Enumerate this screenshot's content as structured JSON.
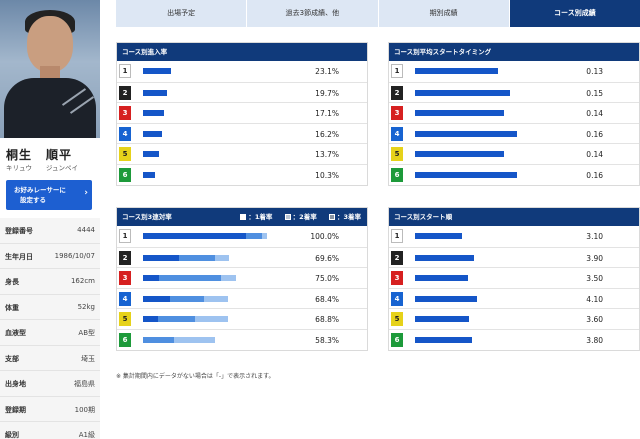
{
  "profile": {
    "surname": "桐生",
    "given": "順平",
    "surname_kana": "キリュウ",
    "given_kana": "ジュンペイ",
    "fav_button": [
      "お好みレーサーに",
      "設定する"
    ],
    "chevron": "›",
    "rows": [
      {
        "label": "登録番号",
        "value": "4444"
      },
      {
        "label": "生年月日",
        "value": "1986/10/07"
      },
      {
        "label": "身長",
        "value": "162cm"
      },
      {
        "label": "体重",
        "value": "52kg"
      },
      {
        "label": "血液型",
        "value": "AB型"
      },
      {
        "label": "支部",
        "value": "埼玉"
      },
      {
        "label": "出身地",
        "value": "福島県"
      },
      {
        "label": "登録期",
        "value": "100期"
      },
      {
        "label": "級別",
        "value": "A1級"
      }
    ]
  },
  "tabs": [
    {
      "label": "出場予定",
      "active": false
    },
    {
      "label": "過去3節成績、他",
      "active": false
    },
    {
      "label": "期別成績",
      "active": false
    },
    {
      "label": "コース別成績",
      "active": true
    }
  ],
  "course_colors": {
    "1": "#ffffff",
    "2": "#222222",
    "3": "#d62020",
    "4": "#1763d1",
    "5": "#e6d21a",
    "6": "#1d9a3a"
  },
  "bar_colors": {
    "primary": "#1556c8",
    "second": "#4f8fe0",
    "third": "#9ec3f0"
  },
  "panels": {
    "entry_rate": {
      "title": "コース別進入率",
      "rows": [
        {
          "course": "1",
          "rate": 23.1,
          "text": "23.1%"
        },
        {
          "course": "2",
          "rate": 19.7,
          "text": "19.7%"
        },
        {
          "course": "3",
          "rate": 17.1,
          "text": "17.1%"
        },
        {
          "course": "4",
          "rate": 16.2,
          "text": "16.2%"
        },
        {
          "course": "5",
          "rate": 13.7,
          "text": "13.7%"
        },
        {
          "course": "6",
          "rate": 10.3,
          "text": "10.3%"
        }
      ]
    },
    "avg_start": {
      "title": "コース別平均スタートタイミング",
      "rows": [
        {
          "course": "1",
          "value": 0.13,
          "text": "0.13"
        },
        {
          "course": "2",
          "value": 0.15,
          "text": "0.15"
        },
        {
          "course": "3",
          "value": 0.14,
          "text": "0.14"
        },
        {
          "course": "4",
          "value": 0.16,
          "text": "0.16"
        },
        {
          "course": "5",
          "value": 0.14,
          "text": "0.14"
        },
        {
          "course": "6",
          "value": 0.16,
          "text": "0.16"
        }
      ]
    },
    "top3_rate": {
      "title": "コース別3連対率",
      "legend": [
        "：1着率",
        "：2着率",
        "：3着率"
      ],
      "rows": [
        {
          "course": "1",
          "first": 83,
          "second": 13,
          "third": 4,
          "total": 100.0,
          "text": "100.0%"
        },
        {
          "course": "2",
          "first": 29,
          "second": 29,
          "third": 11.6,
          "total": 69.6,
          "text": "69.6%"
        },
        {
          "course": "3",
          "first": 13,
          "second": 50,
          "third": 12,
          "total": 75.0,
          "text": "75.0%"
        },
        {
          "course": "4",
          "first": 22,
          "second": 27,
          "third": 19.4,
          "total": 68.4,
          "text": "68.4%"
        },
        {
          "course": "5",
          "first": 12,
          "second": 30,
          "third": 26.8,
          "total": 68.8,
          "text": "68.8%"
        },
        {
          "course": "6",
          "first": 0,
          "second": 25,
          "third": 33.3,
          "total": 58.3,
          "text": "58.3%"
        }
      ]
    },
    "start_rank": {
      "title": "コース別スタート順",
      "rows": [
        {
          "course": "1",
          "value": 3.1,
          "text": "3.10"
        },
        {
          "course": "2",
          "value": 3.9,
          "text": "3.90"
        },
        {
          "course": "3",
          "value": 3.5,
          "text": "3.50"
        },
        {
          "course": "4",
          "value": 4.1,
          "text": "4.10"
        },
        {
          "course": "5",
          "value": 3.6,
          "text": "3.60"
        },
        {
          "course": "6",
          "value": 3.8,
          "text": "3.80"
        }
      ]
    }
  },
  "note": "※ 集計期間内にデータがない場合は「-」で表示されます。"
}
